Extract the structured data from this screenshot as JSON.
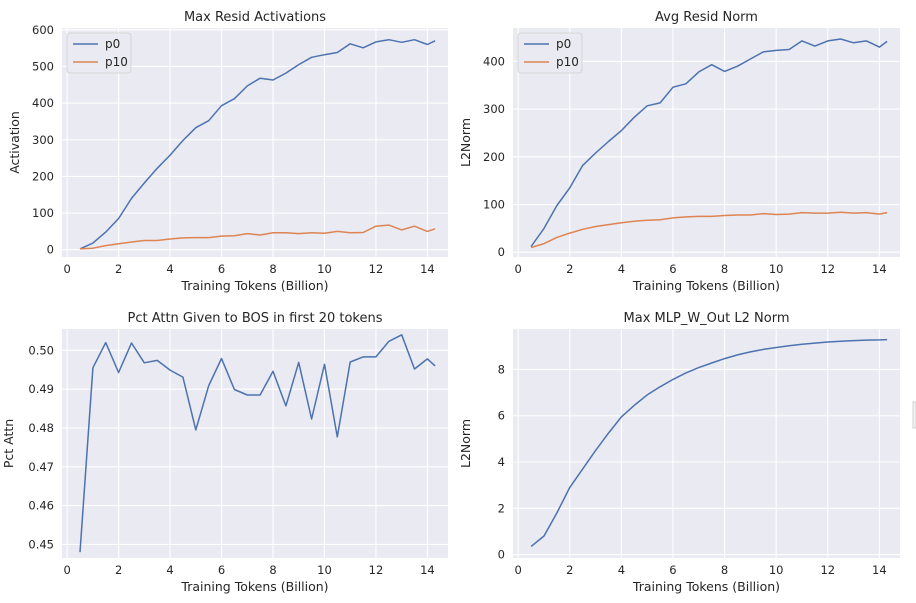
{
  "chart_data": [
    {
      "type": "line",
      "title": "Max Resid Activations",
      "xlabel": "Training Tokens (Billion)",
      "ylabel": "Activation",
      "xlim": [
        -0.2,
        14.8
      ],
      "ylim": [
        -20,
        605
      ],
      "xticks": [
        0,
        2,
        4,
        6,
        8,
        10,
        12,
        14
      ],
      "yticks": [
        0,
        100,
        200,
        300,
        400,
        500,
        600
      ],
      "ytick_format": 0,
      "grid": true,
      "legend": "top-left",
      "x": [
        0.5,
        1.0,
        1.5,
        2.0,
        2.5,
        3.0,
        3.5,
        4.0,
        4.5,
        5.0,
        5.5,
        6.0,
        6.5,
        7.0,
        7.5,
        8.0,
        8.5,
        9.0,
        9.5,
        10.0,
        10.5,
        11.0,
        11.5,
        12.0,
        12.5,
        13.0,
        13.5,
        14.0,
        14.3
      ],
      "series": [
        {
          "name": "p0",
          "color": "#4c72b0",
          "values": [
            2,
            18,
            48,
            85,
            140,
            182,
            222,
            258,
            298,
            333,
            352,
            393,
            412,
            447,
            468,
            463,
            482,
            505,
            525,
            532,
            538,
            562,
            551,
            567,
            573,
            566,
            573,
            560,
            570
          ]
        },
        {
          "name": "p10",
          "color": "#dd8452",
          "values": [
            2,
            4,
            11,
            16,
            21,
            25,
            25,
            29,
            32,
            33,
            33,
            37,
            38,
            44,
            40,
            46,
            46,
            44,
            46,
            45,
            50,
            46,
            47,
            64,
            67,
            54,
            64,
            50,
            57
          ]
        }
      ]
    },
    {
      "type": "line",
      "title": "Avg Resid Norm",
      "xlabel": "Training Tokens (Billion)",
      "ylabel": "L2Norm",
      "xlim": [
        -0.2,
        14.8
      ],
      "ylim": [
        -10,
        470
      ],
      "xticks": [
        0,
        2,
        4,
        6,
        8,
        10,
        12,
        14
      ],
      "yticks": [
        0,
        100,
        200,
        300,
        400
      ],
      "ytick_format": 0,
      "grid": true,
      "legend": "top-left",
      "x": [
        0.5,
        1.0,
        1.5,
        2.0,
        2.5,
        3.0,
        3.5,
        4.0,
        4.5,
        5.0,
        5.5,
        6.0,
        6.5,
        7.0,
        7.5,
        8.0,
        8.5,
        9.0,
        9.5,
        10.0,
        10.5,
        11.0,
        11.5,
        12.0,
        12.5,
        13.0,
        13.5,
        14.0,
        14.3
      ],
      "series": [
        {
          "name": "p0",
          "color": "#4c72b0",
          "values": [
            12,
            50,
            98,
            135,
            182,
            208,
            232,
            255,
            283,
            307,
            313,
            346,
            353,
            378,
            393,
            379,
            390,
            405,
            420,
            423,
            425,
            443,
            432,
            443,
            447,
            439,
            443,
            430,
            442
          ]
        },
        {
          "name": "p10",
          "color": "#dd8452",
          "values": [
            10,
            18,
            31,
            40,
            48,
            54,
            58,
            62,
            65,
            67,
            68,
            72,
            74,
            75,
            75,
            77,
            78,
            78,
            81,
            79,
            80,
            83,
            82,
            82,
            84,
            82,
            83,
            80,
            83
          ]
        }
      ]
    },
    {
      "type": "line",
      "title": "Pct Attn Given to BOS in first 20 tokens",
      "xlabel": "Training Tokens (Billion)",
      "ylabel": "Pct Attn",
      "xlim": [
        -0.2,
        14.8
      ],
      "ylim": [
        0.4465,
        0.5055
      ],
      "xticks": [
        0,
        2,
        4,
        6,
        8,
        10,
        12,
        14
      ],
      "yticks": [
        0.45,
        0.46,
        0.47,
        0.48,
        0.49,
        0.5
      ],
      "ytick_format": 2,
      "grid": true,
      "legend": "none",
      "x": [
        0.5,
        1.0,
        1.5,
        2.0,
        2.5,
        3.0,
        3.5,
        4.0,
        4.5,
        5.0,
        5.5,
        6.0,
        6.5,
        7.0,
        7.5,
        8.0,
        8.5,
        9.0,
        9.5,
        10.0,
        10.5,
        11.0,
        11.5,
        12.0,
        12.5,
        13.0,
        13.5,
        14.0,
        14.3
      ],
      "series": [
        {
          "name": "pct_attn",
          "color": "#4c72b0",
          "values": [
            0.448,
            0.4955,
            0.502,
            0.4943,
            0.5019,
            0.4968,
            0.4974,
            0.4949,
            0.4931,
            0.4795,
            0.4909,
            0.4979,
            0.4899,
            0.4885,
            0.4885,
            0.4946,
            0.4857,
            0.4969,
            0.4823,
            0.4964,
            0.4777,
            0.497,
            0.4983,
            0.4983,
            0.5023,
            0.504,
            0.4952,
            0.4978,
            0.496
          ]
        }
      ]
    },
    {
      "type": "line",
      "title": "Max MLP_W_Out L2 Norm",
      "xlabel": "Training Tokens (Billion)",
      "ylabel": "L2Norm",
      "xlim": [
        -0.2,
        14.8
      ],
      "ylim": [
        -0.15,
        9.75
      ],
      "xticks": [
        0,
        2,
        4,
        6,
        8,
        10,
        12,
        14
      ],
      "yticks": [
        0,
        2,
        4,
        6,
        8
      ],
      "ytick_format": 0,
      "grid": true,
      "legend": "none",
      "x": [
        0.5,
        1.0,
        1.5,
        2.0,
        2.5,
        3.0,
        3.5,
        4.0,
        4.5,
        5.0,
        5.5,
        6.0,
        6.5,
        7.0,
        7.5,
        8.0,
        8.5,
        9.0,
        9.5,
        10.0,
        10.5,
        11.0,
        11.5,
        12.0,
        12.5,
        13.0,
        13.5,
        14.0,
        14.3
      ],
      "series": [
        {
          "name": "mlp_w_out",
          "color": "#4c72b0",
          "values": [
            0.35,
            0.8,
            1.8,
            2.9,
            3.7,
            4.5,
            5.25,
            5.95,
            6.45,
            6.9,
            7.25,
            7.57,
            7.85,
            8.08,
            8.28,
            8.47,
            8.63,
            8.76,
            8.87,
            8.95,
            9.03,
            9.09,
            9.14,
            9.19,
            9.22,
            9.25,
            9.27,
            9.28,
            9.29
          ]
        }
      ]
    }
  ]
}
